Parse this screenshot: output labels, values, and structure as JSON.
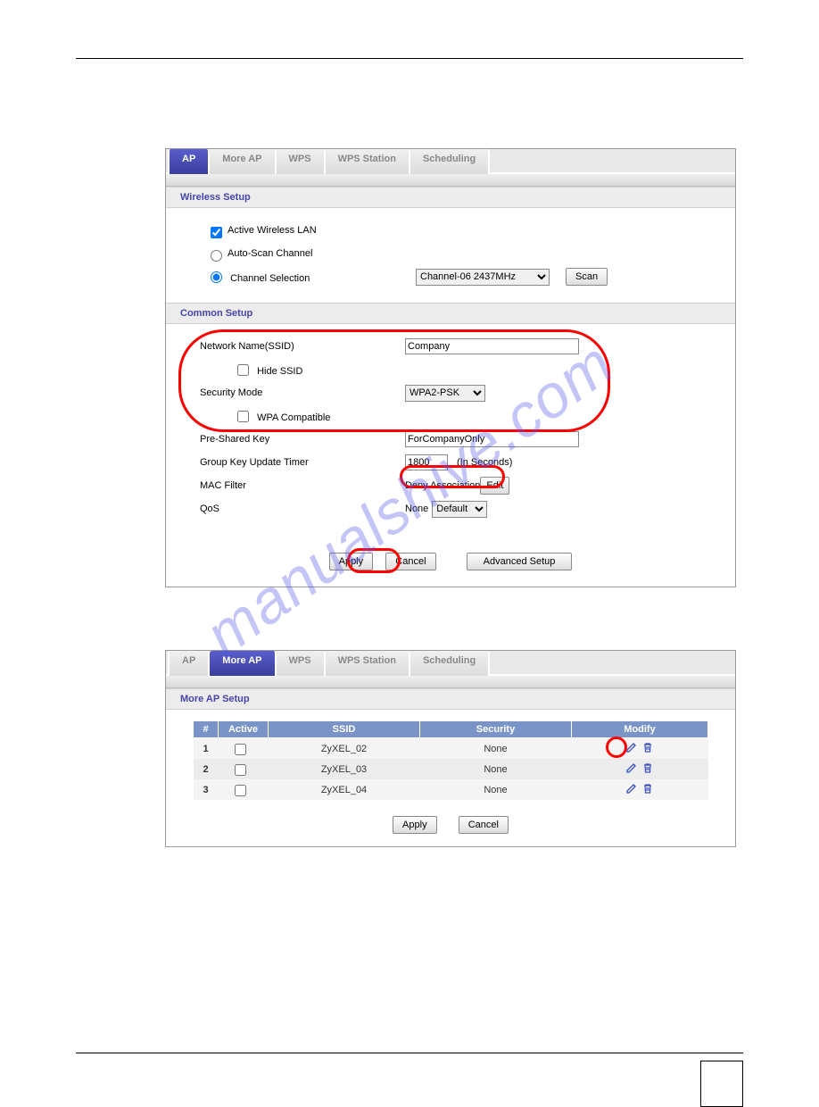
{
  "watermark": "manualshive.com",
  "panel1": {
    "tabs": [
      "AP",
      "More AP",
      "WPS",
      "WPS Station",
      "Scheduling"
    ],
    "active_tab": 0,
    "section1_title": "Wireless Setup",
    "active_wlan_label": "Active Wireless LAN",
    "active_wlan_checked": true,
    "auto_scan_label": "Auto-Scan Channel",
    "channel_sel_label": "Channel Selection",
    "channel_value": "Channel-06 2437MHz",
    "scan_btn": "Scan",
    "section2_title": "Common Setup",
    "ssid_label": "Network Name(SSID)",
    "ssid_value": "Company",
    "hide_ssid_label": "Hide SSID",
    "sec_mode_label": "Security Mode",
    "sec_mode_value": "WPA2-PSK",
    "wpa_compat_label": "WPA Compatible",
    "psk_label": "Pre-Shared Key",
    "psk_value": "ForCompanyOnly",
    "gkey_label": "Group Key Update Timer",
    "gkey_value": "1800",
    "gkey_unit": "(In Seconds)",
    "mac_label": "MAC Filter",
    "mac_value": "Deny Association ",
    "mac_btn": "Edit",
    "qos_label": "QoS",
    "qos_prefix": "None",
    "qos_value": "Default",
    "apply_btn": "Apply",
    "cancel_btn": "Cancel",
    "adv_btn": "Advanced Setup",
    "highlight_colors": {
      "stroke": "#ff0000"
    }
  },
  "panel2": {
    "tabs": [
      "AP",
      "More AP",
      "WPS",
      "WPS Station",
      "Scheduling"
    ],
    "active_tab": 1,
    "section_title": "More AP Setup",
    "headers": [
      "#",
      "Active",
      "SSID",
      "Security",
      "Modify"
    ],
    "rows": [
      {
        "n": "1",
        "active": false,
        "ssid": "ZyXEL_02",
        "sec": "None"
      },
      {
        "n": "2",
        "active": false,
        "ssid": "ZyXEL_03",
        "sec": "None"
      },
      {
        "n": "3",
        "active": false,
        "ssid": "ZyXEL_04",
        "sec": "None"
      }
    ],
    "apply_btn": "Apply",
    "cancel_btn": "Cancel",
    "icon_colors": {
      "edit": "#3a4fbb",
      "delete": "#3a4fbb"
    }
  }
}
